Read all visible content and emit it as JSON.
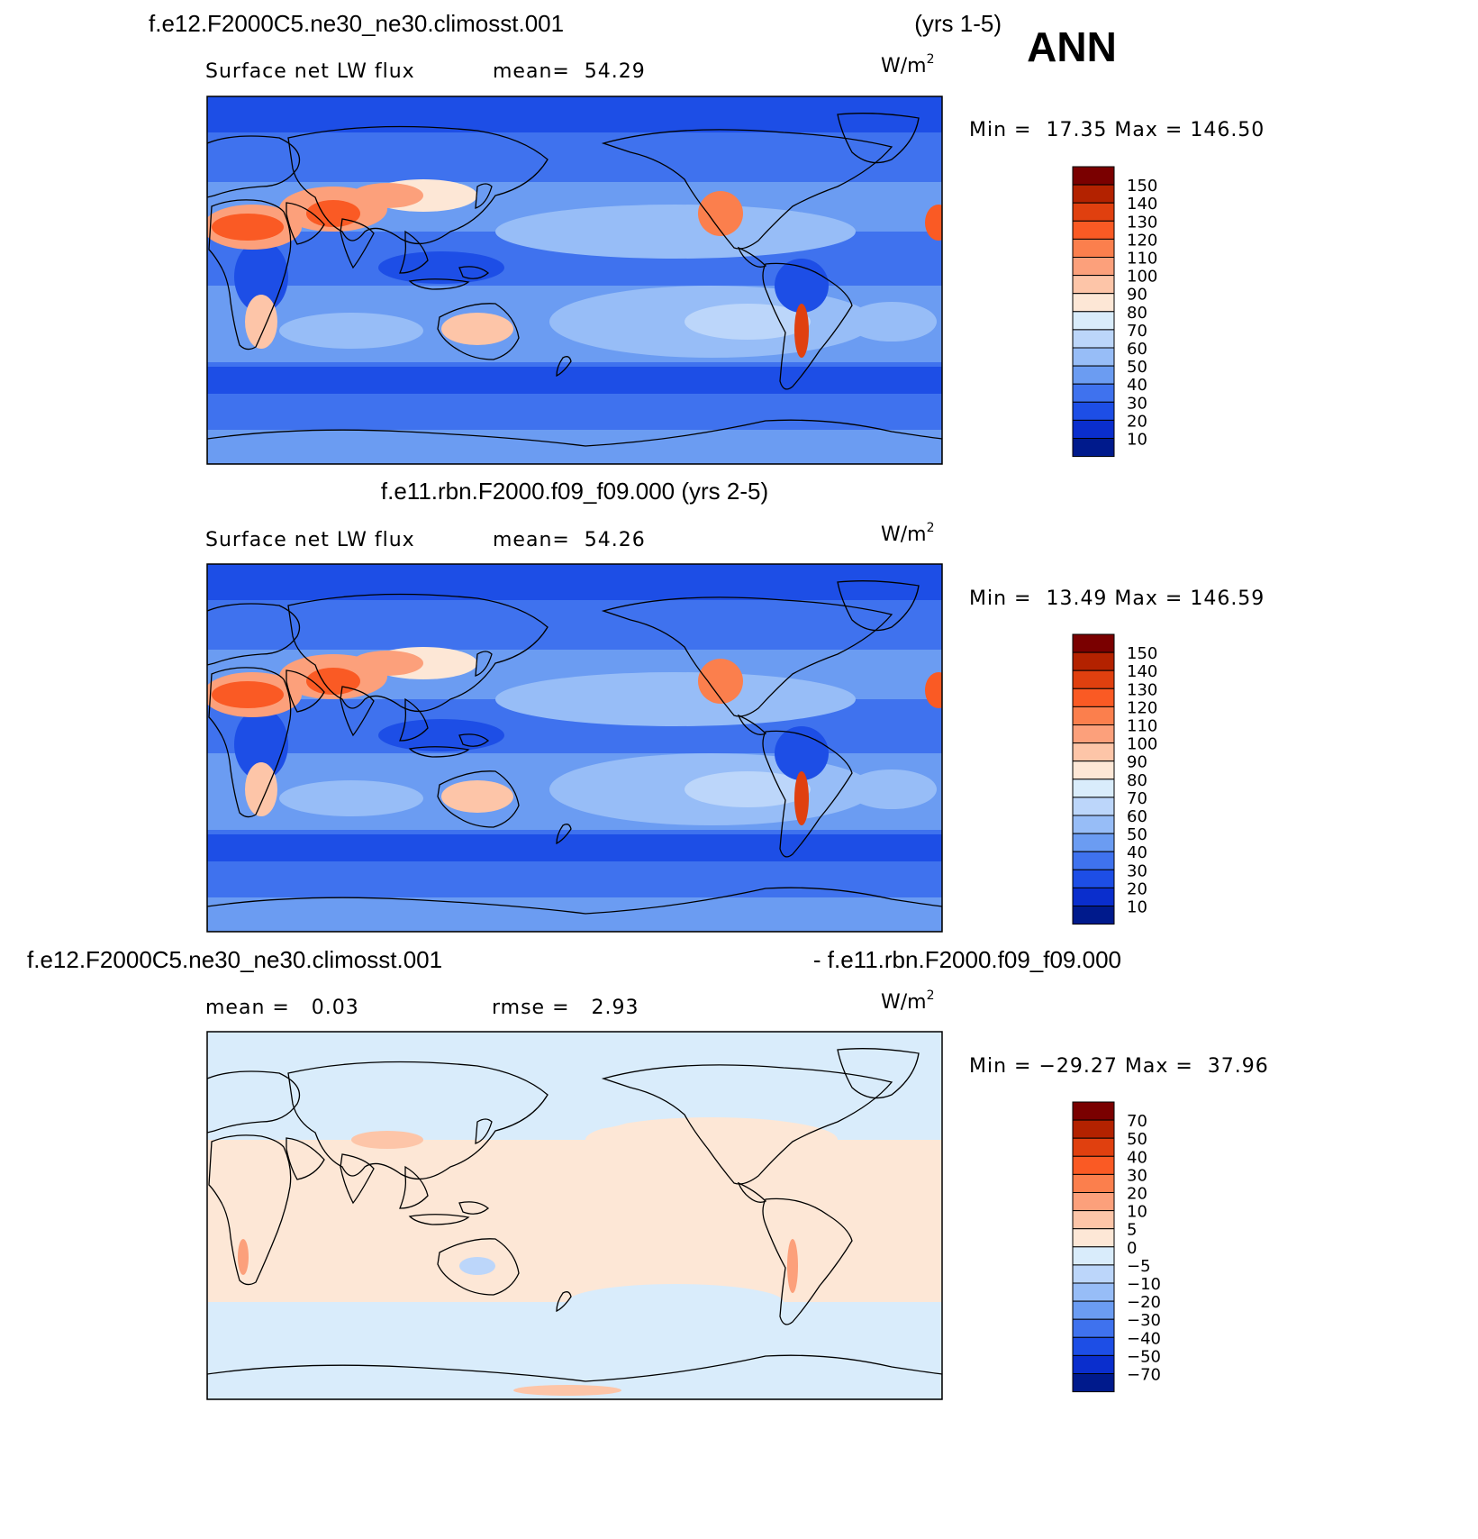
{
  "season": "ANN",
  "panels": [
    {
      "title_left": "f.e12.F2000C5.ne30_ne30.climosst.001",
      "title_right": "(yrs 1-5)",
      "var_label": "Surface net LW flux",
      "stat1": "mean=  54.29",
      "stat2": "",
      "units": "W/m",
      "units_sup": "2",
      "minmax": "Min =  17.35 Max = 146.50",
      "colorbar": {
        "labels": [
          "150",
          "140",
          "130",
          "120",
          "110",
          "100",
          "90",
          "80",
          "70",
          "60",
          "50",
          "40",
          "30",
          "20",
          "10"
        ],
        "colors": [
          "#7a0000",
          "#b32200",
          "#e0400f",
          "#fa5a24",
          "#fb7f4d",
          "#fca07b",
          "#fdc5a8",
          "#fde7d6",
          "#d9ecfb",
          "#bcd6fa",
          "#97bdf7",
          "#6b9cf2",
          "#3f72ee",
          "#1d4ee6",
          "#0a2ecd",
          "#001a8c"
        ]
      }
    },
    {
      "title_left": "f.e11.rbn.F2000.f09_f09.000 (yrs 2-5)",
      "title_right": "",
      "var_label": "Surface net LW flux",
      "stat1": "mean=  54.26",
      "stat2": "",
      "units": "W/m",
      "units_sup": "2",
      "minmax": "Min =  13.49 Max = 146.59",
      "colorbar": {
        "labels": [
          "150",
          "140",
          "130",
          "120",
          "110",
          "100",
          "90",
          "80",
          "70",
          "60",
          "50",
          "40",
          "30",
          "20",
          "10"
        ],
        "colors": [
          "#7a0000",
          "#b32200",
          "#e0400f",
          "#fa5a24",
          "#fb7f4d",
          "#fca07b",
          "#fdc5a8",
          "#fde7d6",
          "#d9ecfb",
          "#bcd6fa",
          "#97bdf7",
          "#6b9cf2",
          "#3f72ee",
          "#1d4ee6",
          "#0a2ecd",
          "#001a8c"
        ]
      }
    },
    {
      "title_left": "f.e12.F2000C5.ne30_ne30.climosst.001",
      "title_right": "- f.e11.rbn.F2000.f09_f09.000",
      "var_label": "",
      "stat1": "mean =   0.03",
      "stat2": "rmse =   2.93",
      "units": "W/m",
      "units_sup": "2",
      "minmax": "Min = −29.27 Max =  37.96",
      "colorbar": {
        "labels": [
          "70",
          "50",
          "40",
          "30",
          "20",
          "10",
          "5",
          "0",
          "−5",
          "−10",
          "−20",
          "−30",
          "−40",
          "−50",
          "−70"
        ],
        "colors": [
          "#7a0000",
          "#b32200",
          "#e0400f",
          "#fa5a24",
          "#fb7f4d",
          "#fca07b",
          "#fdc5a8",
          "#fde7d6",
          "#d9ecfb",
          "#bcd6fa",
          "#97bdf7",
          "#6b9cf2",
          "#3f72ee",
          "#1d4ee6",
          "#0a2ecd",
          "#001a8c"
        ]
      }
    }
  ]
}
